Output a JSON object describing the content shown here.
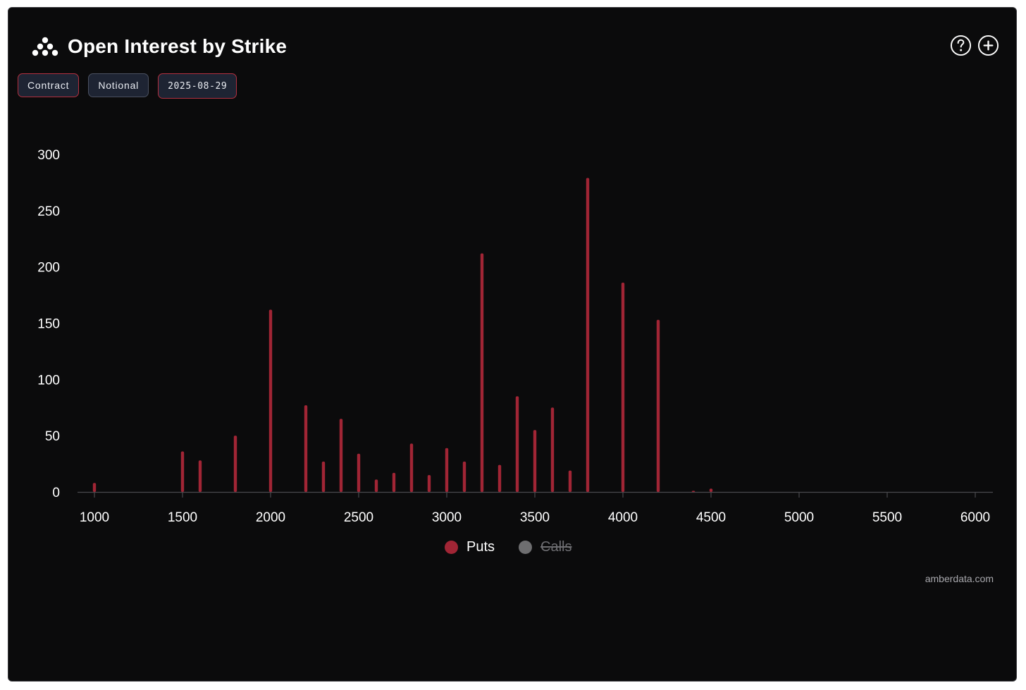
{
  "header": {
    "title": "Open Interest by Strike",
    "logo_icon": "amberdata-logo-icon",
    "help_icon": "question-circle-icon",
    "add_icon": "plus-circle-icon"
  },
  "filters": [
    {
      "label": "Contract",
      "active": true
    },
    {
      "label": "Notional",
      "active": false
    },
    {
      "label": "2025-08-29",
      "active": true
    }
  ],
  "colors": {
    "puts": "#a12535",
    "calls": "#6e6e70",
    "background": "#0b0b0c",
    "accent": "#b3303f"
  },
  "chart_data": {
    "type": "bar",
    "title": "Open Interest by Strike",
    "xlabel": "",
    "ylabel": "",
    "xlim": [
      1000,
      6000
    ],
    "ylim": [
      0,
      300
    ],
    "x_ticks": [
      1000,
      1500,
      2000,
      2500,
      3000,
      3500,
      4000,
      4500,
      5000,
      5500,
      6000
    ],
    "y_ticks": [
      0,
      50,
      100,
      150,
      200,
      250,
      300
    ],
    "grid": false,
    "legend_position": "bottom-center",
    "series": [
      {
        "name": "Puts",
        "visible": true,
        "points": [
          {
            "x": 1000,
            "y": 8
          },
          {
            "x": 1500,
            "y": 36
          },
          {
            "x": 1600,
            "y": 28
          },
          {
            "x": 1800,
            "y": 50
          },
          {
            "x": 2000,
            "y": 162
          },
          {
            "x": 2200,
            "y": 77
          },
          {
            "x": 2300,
            "y": 27
          },
          {
            "x": 2400,
            "y": 65
          },
          {
            "x": 2500,
            "y": 34
          },
          {
            "x": 2600,
            "y": 11
          },
          {
            "x": 2700,
            "y": 17
          },
          {
            "x": 2800,
            "y": 43
          },
          {
            "x": 2900,
            "y": 15
          },
          {
            "x": 3000,
            "y": 39
          },
          {
            "x": 3100,
            "y": 27
          },
          {
            "x": 3200,
            "y": 212
          },
          {
            "x": 3300,
            "y": 24
          },
          {
            "x": 3400,
            "y": 85
          },
          {
            "x": 3500,
            "y": 55
          },
          {
            "x": 3600,
            "y": 75
          },
          {
            "x": 3700,
            "y": 19
          },
          {
            "x": 3800,
            "y": 279
          },
          {
            "x": 4000,
            "y": 186
          },
          {
            "x": 4200,
            "y": 153
          },
          {
            "x": 4400,
            "y": 1
          },
          {
            "x": 4500,
            "y": 3
          }
        ]
      },
      {
        "name": "Calls",
        "visible": false,
        "points": []
      }
    ]
  },
  "legend": {
    "puts_label": "Puts",
    "calls_label": "Calls"
  },
  "footer": {
    "source": "amberdata.com"
  }
}
